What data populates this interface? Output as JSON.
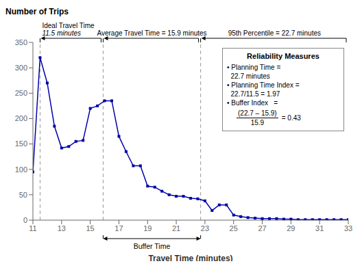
{
  "chart_data": {
    "type": "line",
    "y_label": "Number of Trips",
    "x_label": "Travel Time (minutes)",
    "x": [
      11,
      11.5,
      12,
      12.5,
      13,
      13.5,
      14,
      14.5,
      15,
      15.5,
      16,
      16.5,
      17,
      17.5,
      18,
      18.5,
      19,
      19.5,
      20,
      20.5,
      21,
      21.5,
      22,
      22.5,
      23,
      23.5,
      24,
      24.5,
      25,
      25.5,
      26,
      26.5,
      27,
      27.5,
      28,
      28.5,
      29,
      29.5,
      30,
      30.5,
      31,
      31.5,
      32,
      32.5,
      33
    ],
    "values": [
      95,
      320,
      270,
      185,
      142,
      145,
      155,
      157,
      220,
      225,
      235,
      235,
      165,
      135,
      107,
      107,
      67,
      65,
      57,
      50,
      47,
      47,
      43,
      42,
      38,
      19,
      30,
      30,
      10,
      7,
      5,
      4,
      3,
      3,
      3,
      2,
      2,
      1,
      1,
      1,
      1,
      1,
      1,
      1,
      1
    ],
    "color": "#0000AA",
    "marker": "square",
    "xlim": [
      11,
      33
    ],
    "ylim": [
      0,
      350
    ],
    "xticks": [
      11,
      13,
      15,
      17,
      19,
      21,
      23,
      25,
      27,
      29,
      31,
      33
    ],
    "yticks": [
      0,
      50,
      100,
      150,
      200,
      250,
      300,
      350
    ],
    "grid": false,
    "reference_lines": {
      "color": "#999999",
      "line_style": "dashed",
      "lines": [
        {
          "x": 11.5,
          "label": [
            "Ideal Travel Time",
            "11.5 minutes"
          ]
        },
        {
          "x": 15.9,
          "label": [
            "Average Travel Time = 15.9 minutes"
          ]
        },
        {
          "x": 22.7,
          "label": [
            "95th Percentile = 22.7 minutes"
          ]
        }
      ]
    },
    "buffer_label": "Buffer Time",
    "text_box": {
      "title": "Reliability Measures",
      "lines": [
        "• Planning Time =",
        "  22.7 minutes",
        "• Planning Time Index =",
        "  22.7/11.5 = 1.97",
        "• Buffer Index   ="
      ],
      "fraction": {
        "numerator": "(22.7 – 15.9)",
        "denominator": "15.9",
        "result": "= 0.43"
      }
    }
  }
}
